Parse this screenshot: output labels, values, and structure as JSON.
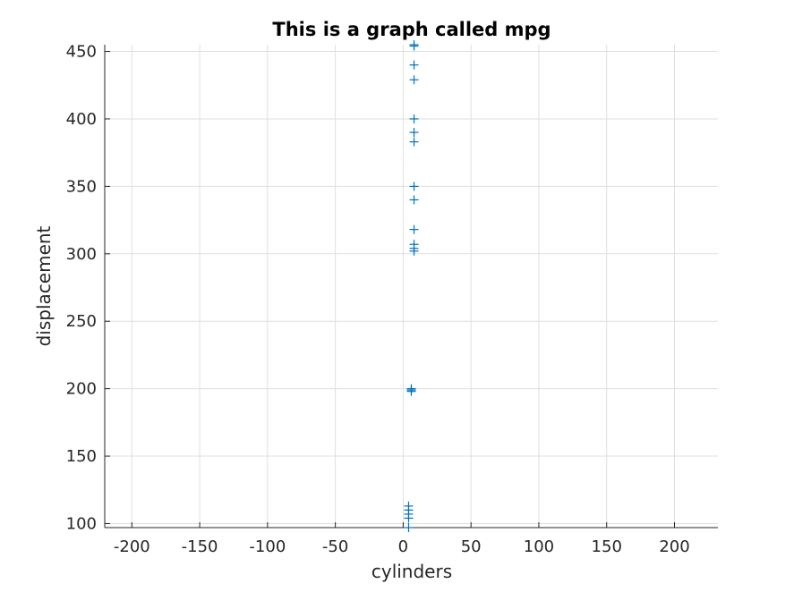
{
  "chart_data": {
    "type": "scatter",
    "title": "This is a graph called mpg",
    "xlabel": "cylinders",
    "ylabel": "displacement",
    "xlim": [
      -220,
      232
    ],
    "ylim": [
      97,
      455
    ],
    "xticks": [
      -200,
      -150,
      -100,
      -50,
      0,
      50,
      100,
      150,
      200
    ],
    "yticks": [
      100,
      150,
      200,
      250,
      300,
      350,
      400,
      450
    ],
    "grid": true,
    "marker": "+",
    "color": "#0072bd",
    "points": [
      {
        "x": 8,
        "y": 455
      },
      {
        "x": 8,
        "y": 454
      },
      {
        "x": 8,
        "y": 440
      },
      {
        "x": 8,
        "y": 429
      },
      {
        "x": 8,
        "y": 400
      },
      {
        "x": 8,
        "y": 390
      },
      {
        "x": 8,
        "y": 383
      },
      {
        "x": 8,
        "y": 350
      },
      {
        "x": 8,
        "y": 340
      },
      {
        "x": 8,
        "y": 318
      },
      {
        "x": 8,
        "y": 307
      },
      {
        "x": 8,
        "y": 304
      },
      {
        "x": 8,
        "y": 302
      },
      {
        "x": 6,
        "y": 200
      },
      {
        "x": 6,
        "y": 199
      },
      {
        "x": 6,
        "y": 198
      },
      {
        "x": 4,
        "y": 113
      },
      {
        "x": 4,
        "y": 110
      },
      {
        "x": 4,
        "y": 107
      },
      {
        "x": 4,
        "y": 104
      },
      {
        "x": 4,
        "y": 97
      }
    ]
  }
}
